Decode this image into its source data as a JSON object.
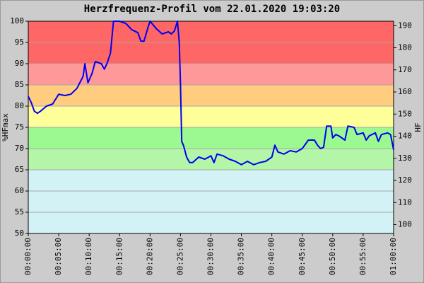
{
  "chart_data": {
    "type": "line",
    "title": "Herzfrequenz-Profil vom 22.01.2020 19:03:20",
    "y_label": "%HFmax",
    "y2_label": "HF",
    "x": [
      0,
      0.5,
      1,
      1.5,
      2,
      3,
      4,
      5,
      6,
      7,
      8,
      9,
      9.3,
      9.8,
      10.5,
      11,
      12,
      12.5,
      13,
      13.5,
      14,
      15,
      16,
      17,
      18,
      18.5,
      19,
      19.7,
      20,
      21,
      22,
      23,
      23.5,
      24,
      24.5,
      24.8,
      25,
      25.2,
      25.5,
      26,
      26.5,
      27,
      28,
      29,
      30,
      30.5,
      31,
      32,
      33,
      34,
      35,
      36,
      37,
      38,
      39,
      40,
      40.5,
      41,
      42,
      43,
      44,
      45,
      46,
      47,
      47.5,
      48,
      48.5,
      49,
      49.7,
      50,
      50.5,
      51,
      52,
      52.5,
      53.5,
      54,
      55,
      55.5,
      56,
      57,
      57.5,
      58,
      59,
      59.5,
      60
    ],
    "series": [
      {
        "name": "HF",
        "color": "#0000ee",
        "values": [
          82.3,
          80.8,
          78.8,
          78.3,
          78.8,
          80,
          80.5,
          82.8,
          82.5,
          82.8,
          84.2,
          87,
          90,
          85.5,
          87.8,
          90.5,
          90,
          88.7,
          90.3,
          92.5,
          100,
          100,
          99.5,
          98,
          97.3,
          95.3,
          95.3,
          98.7,
          100,
          98.3,
          97,
          97.5,
          97,
          97.7,
          100,
          95,
          85,
          71.7,
          70.7,
          68,
          66.7,
          66.7,
          68,
          67.5,
          68.3,
          66.7,
          68.7,
          68.3,
          67.5,
          67,
          66.2,
          67,
          66.2,
          66.7,
          67,
          68,
          70.8,
          69.2,
          68.7,
          69.5,
          69.2,
          70,
          72,
          72,
          70.8,
          70,
          70.3,
          75.3,
          75.3,
          72.5,
          73.3,
          73,
          72,
          75.3,
          75,
          73.3,
          73.7,
          72,
          73,
          73.7,
          71.7,
          73.3,
          73.7,
          73.3,
          69.7
        ]
      }
    ],
    "xlim": [
      0,
      60
    ],
    "xticks": [
      {
        "value": 0,
        "label": "00:00:00"
      },
      {
        "value": 5,
        "label": "00:05:00"
      },
      {
        "value": 10,
        "label": "00:10:00"
      },
      {
        "value": 15,
        "label": "00:15:00"
      },
      {
        "value": 20,
        "label": "00:20:00"
      },
      {
        "value": 25,
        "label": "00:25:00"
      },
      {
        "value": 30,
        "label": "00:30:00"
      },
      {
        "value": 35,
        "label": "00:35:00"
      },
      {
        "value": 40,
        "label": "00:40:00"
      },
      {
        "value": 45,
        "label": "00:45:00"
      },
      {
        "value": 50,
        "label": "00:50:00"
      },
      {
        "value": 55,
        "label": "00:55:00"
      },
      {
        "value": 60,
        "label": "01:00:00"
      }
    ],
    "ylim": [
      50,
      100
    ],
    "yticks": [
      50,
      55,
      60,
      65,
      70,
      75,
      80,
      85,
      90,
      95,
      100
    ],
    "y2lim": [
      96,
      192
    ],
    "y2ticks": [
      100,
      110,
      120,
      130,
      140,
      150,
      160,
      170,
      180,
      190
    ],
    "bands": [
      {
        "from": 50,
        "to": 65,
        "color": "#d2f2f6"
      },
      {
        "from": 65,
        "to": 70,
        "color": "#b4f6a8"
      },
      {
        "from": 70,
        "to": 75,
        "color": "#9cf890"
      },
      {
        "from": 75,
        "to": 80,
        "color": "#ffff99"
      },
      {
        "from": 80,
        "to": 85,
        "color": "#ffcc80"
      },
      {
        "from": 85,
        "to": 90,
        "color": "#ff9999"
      },
      {
        "from": 90,
        "to": 100,
        "color": "#ff6666"
      }
    ],
    "grid": true
  }
}
